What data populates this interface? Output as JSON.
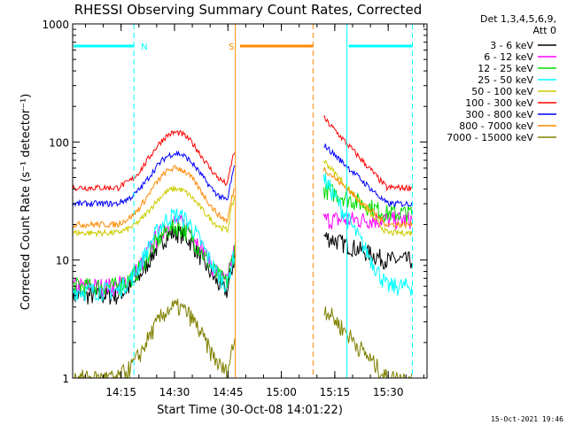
{
  "chart_data": {
    "type": "line",
    "title": "RHESSI Observing Summary Count Rates, Corrected",
    "xlabel": "Start Time (30-Oct-08 14:01:22)",
    "ylabel": "Corrected Count Rate (s⁻¹ detector⁻¹)",
    "y_scale": "log",
    "ylim": [
      1,
      1000
    ],
    "xlim_minutes": [
      0,
      99.5
    ],
    "x_ticks": [
      {
        "label": "14:15",
        "minute": 13.6
      },
      {
        "label": "14:30",
        "minute": 28.6
      },
      {
        "label": "14:45",
        "minute": 43.6
      },
      {
        "label": "15:00",
        "minute": 58.6
      },
      {
        "label": "15:15",
        "minute": 73.6
      },
      {
        "label": "15:30",
        "minute": 88.6
      }
    ],
    "y_ticks": [
      {
        "label": "1",
        "value": 1
      },
      {
        "label": "10",
        "value": 10
      },
      {
        "label": "100",
        "value": 100
      },
      {
        "label": "1000",
        "value": 1000
      }
    ],
    "legend_header": [
      "Det 1,3,4,5,6,9,",
      "Att 0"
    ],
    "series": [
      {
        "name": "3 - 6 keV",
        "color": "#000000",
        "base": 5.0,
        "peak": 17.0,
        "post": [
          16.0,
          10.0
        ]
      },
      {
        "name": "6 - 12 keV",
        "color": "#ff00ff",
        "base": 6.0,
        "peak": 21.0,
        "post": [
          22.0,
          22.0
        ]
      },
      {
        "name": "12 - 25 keV",
        "color": "#00dd00",
        "base": 6.0,
        "peak": 19.0,
        "post": [
          40.0,
          25.0
        ]
      },
      {
        "name": "25 - 50 keV",
        "color": "#00ffff",
        "base": 5.5,
        "peak": 24.0,
        "post": [
          50.0,
          6.0
        ]
      },
      {
        "name": "50 - 100 keV",
        "color": "#cccc00",
        "base": 17.0,
        "peak": 40.0,
        "post": [
          70.0,
          17.0
        ]
      },
      {
        "name": "100 - 300 keV",
        "color": "#ff0000",
        "base": 41.0,
        "peak": 120.0,
        "post": [
          160.0,
          41.0
        ]
      },
      {
        "name": "300 - 800 keV",
        "color": "#0000ff",
        "base": 30.0,
        "peak": 80.0,
        "post": [
          95.0,
          30.0
        ]
      },
      {
        "name": "800 - 7000 keV",
        "color": "#ff8800",
        "base": 20.0,
        "peak": 60.0,
        "post": [
          60.0,
          20.0
        ]
      },
      {
        "name": "7000 - 15000 keV",
        "color": "#808000",
        "base": 1.0,
        "peak": 4.0,
        "post": [
          4.0,
          1.0
        ]
      }
    ],
    "annotations": [
      {
        "label": "N",
        "color": "#00ffff"
      },
      {
        "label": "S",
        "color": "#ff8800"
      }
    ]
  },
  "footer": {
    "timestamp": "15-Oct-2021 19:46"
  }
}
